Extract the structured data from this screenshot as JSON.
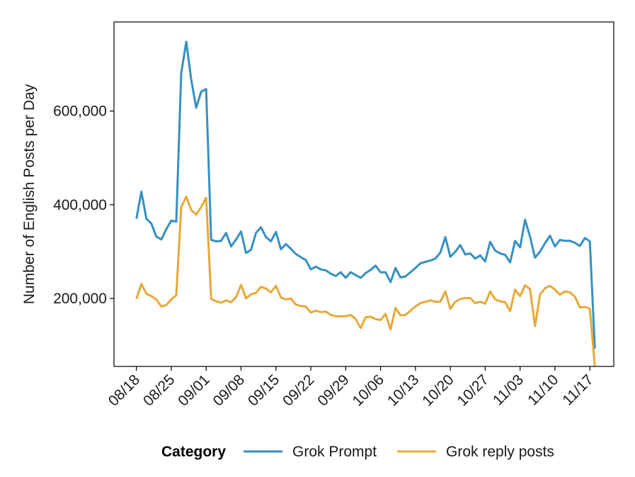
{
  "chart_data": {
    "type": "line",
    "title": "",
    "xlabel": "",
    "ylabel": "Number of English Posts per Day",
    "x_ticks": [
      "08/18",
      "08/25",
      "09/01",
      "09/08",
      "09/15",
      "09/22",
      "09/29",
      "10/06",
      "10/13",
      "10/20",
      "10/27",
      "11/03",
      "11/10",
      "11/17"
    ],
    "y_ticks": [
      {
        "value": 200000,
        "label": "200,000"
      },
      {
        "value": 400000,
        "label": "400,000"
      },
      {
        "value": 600000,
        "label": "600,000"
      }
    ],
    "ylim": [
      55000,
      790000
    ],
    "xlim": [
      -4.5,
      95.8
    ],
    "grid": false,
    "legend": {
      "title": "Category",
      "position": "bottom"
    },
    "series": [
      {
        "name": "Grok Prompt",
        "color": "#3690c0",
        "values": [
          370000,
          428000,
          370000,
          360000,
          332000,
          326000,
          348000,
          366000,
          364000,
          681000,
          748000,
          667000,
          607000,
          641000,
          647000,
          325000,
          322000,
          323000,
          340000,
          311000,
          326000,
          343000,
          297000,
          304000,
          340000,
          352000,
          331000,
          322000,
          342000,
          305000,
          316000,
          306000,
          295000,
          288000,
          282000,
          262000,
          268000,
          262000,
          260000,
          253000,
          248000,
          256000,
          244000,
          256000,
          250000,
          244000,
          254000,
          261000,
          270000,
          256000,
          256000,
          235000,
          265000,
          245000,
          247000,
          256000,
          265000,
          275000,
          278000,
          281000,
          285000,
          298000,
          331000,
          289000,
          300000,
          314000,
          294000,
          296000,
          285000,
          292000,
          279000,
          321000,
          302000,
          296000,
          293000,
          277000,
          323000,
          309000,
          368000,
          332000,
          287000,
          300000,
          318000,
          334000,
          311000,
          325000,
          323000,
          323000,
          319000,
          312000,
          329000,
          322000,
          93000
        ]
      },
      {
        "name": "Grok reply posts",
        "color": "#e8a838",
        "values": [
          199000,
          231000,
          210000,
          205000,
          198000,
          183000,
          186000,
          198000,
          207000,
          395000,
          417000,
          389000,
          379000,
          395000,
          415000,
          199000,
          194000,
          191000,
          196000,
          192000,
          203000,
          229000,
          200000,
          209000,
          212000,
          225000,
          221000,
          213000,
          227000,
          202000,
          198000,
          200000,
          187000,
          184000,
          183000,
          170000,
          174000,
          171000,
          172000,
          165000,
          162000,
          162000,
          162000,
          165000,
          156000,
          137000,
          160000,
          161000,
          156000,
          154000,
          167000,
          134000,
          180000,
          164000,
          165000,
          174000,
          183000,
          190000,
          193000,
          196000,
          193000,
          193000,
          215000,
          178000,
          193000,
          199000,
          201000,
          201000,
          190000,
          193000,
          189000,
          215000,
          198000,
          194000,
          192000,
          173000,
          219000,
          205000,
          228000,
          220000,
          141000,
          208000,
          222000,
          227000,
          219000,
          208000,
          215000,
          213000,
          204000,
          181000,
          182000,
          178000,
          55000
        ]
      }
    ]
  }
}
